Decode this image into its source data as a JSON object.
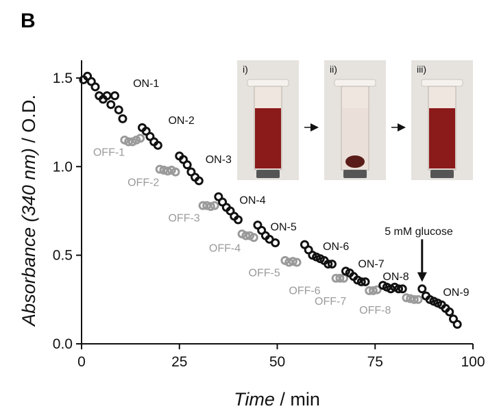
{
  "panel_label": "B",
  "colors": {
    "on": "#111111",
    "off": "#9a9a9a",
    "tube_liquid": "#8b1a1a",
    "photo_bg": "#e6e3df"
  },
  "chart_data": {
    "type": "scatter",
    "xlabel_italic": "Time",
    "xlabel_rest": " / min",
    "ylabel_italic": "Absorbance (340 nm)",
    "ylabel_rest": " / O.D.",
    "xlim": [
      0,
      100
    ],
    "ylim": [
      0,
      1.6
    ],
    "xticks": [
      0,
      25,
      50,
      75,
      100
    ],
    "ytick_values": [
      0.0,
      0.5,
      1.0,
      1.5
    ],
    "ytick_labels": [
      "0.0",
      "0.5",
      "1.0",
      "1.5"
    ],
    "grid": false,
    "segments": [
      {
        "name": "ON-1",
        "state": "on",
        "points": [
          [
            0.5,
            1.49
          ],
          [
            1.5,
            1.51
          ],
          [
            2.5,
            1.48
          ],
          [
            3.5,
            1.45
          ],
          [
            4.5,
            1.4
          ],
          [
            5.5,
            1.38
          ],
          [
            6.5,
            1.4
          ],
          [
            7.5,
            1.35
          ],
          [
            8.5,
            1.4
          ],
          [
            9.5,
            1.32
          ],
          [
            10.5,
            1.27
          ]
        ]
      },
      {
        "name": "OFF-1",
        "state": "off",
        "points": [
          [
            11.0,
            1.15
          ],
          [
            12.0,
            1.14
          ],
          [
            13.0,
            1.14
          ],
          [
            14.0,
            1.15
          ],
          [
            15.0,
            1.16
          ]
        ]
      },
      {
        "name": "ON-2",
        "state": "on",
        "points": [
          [
            15.5,
            1.22
          ],
          [
            16.5,
            1.2
          ],
          [
            17.5,
            1.17
          ],
          [
            18.5,
            1.14
          ],
          [
            19.5,
            1.12
          ]
        ]
      },
      {
        "name": "OFF-2",
        "state": "off",
        "points": [
          [
            20.0,
            0.985
          ],
          [
            21.0,
            0.98
          ],
          [
            22.0,
            0.975
          ],
          [
            23.0,
            0.98
          ],
          [
            24.0,
            0.97
          ]
        ]
      },
      {
        "name": "ON-3",
        "state": "on",
        "points": [
          [
            25.0,
            1.06
          ],
          [
            26.0,
            1.04
          ],
          [
            27.0,
            1.01
          ],
          [
            28.0,
            0.97
          ],
          [
            29.0,
            0.94
          ],
          [
            30.0,
            0.92
          ]
        ]
      },
      {
        "name": "OFF-3",
        "state": "off",
        "points": [
          [
            31.0,
            0.78
          ],
          [
            32.0,
            0.78
          ],
          [
            33.0,
            0.775
          ],
          [
            34.0,
            0.78
          ]
        ]
      },
      {
        "name": "ON-4",
        "state": "on",
        "points": [
          [
            35.0,
            0.83
          ],
          [
            36.0,
            0.8
          ],
          [
            37.0,
            0.77
          ],
          [
            38.0,
            0.75
          ],
          [
            39.0,
            0.72
          ],
          [
            40.0,
            0.7
          ]
        ]
      },
      {
        "name": "OFF-4",
        "state": "off",
        "points": [
          [
            41.0,
            0.62
          ],
          [
            42.0,
            0.61
          ],
          [
            43.0,
            0.61
          ],
          [
            44.0,
            0.6
          ]
        ]
      },
      {
        "name": "ON-5",
        "state": "on",
        "points": [
          [
            45.0,
            0.67
          ],
          [
            46.0,
            0.64
          ],
          [
            47.0,
            0.61
          ],
          [
            48.0,
            0.59
          ],
          [
            49.5,
            0.57
          ]
        ]
      },
      {
        "name": "OFF-5",
        "state": "off",
        "points": [
          [
            52.0,
            0.47
          ],
          [
            53.0,
            0.46
          ],
          [
            54.0,
            0.465
          ],
          [
            55.0,
            0.46
          ]
        ]
      },
      {
        "name": "ON-6",
        "state": "on",
        "points": [
          [
            57.0,
            0.56
          ],
          [
            58.0,
            0.53
          ],
          [
            59.0,
            0.5
          ],
          [
            60.0,
            0.49
          ],
          [
            61.0,
            0.48
          ],
          [
            62.0,
            0.47
          ],
          [
            63.0,
            0.45
          ],
          [
            64.0,
            0.45
          ]
        ]
      },
      {
        "name": "OFF-6",
        "state": "off",
        "points": [
          [
            65.0,
            0.37
          ],
          [
            66.0,
            0.37
          ],
          [
            67.0,
            0.37
          ]
        ]
      },
      {
        "name": "ON-7",
        "state": "on",
        "points": [
          [
            67.5,
            0.41
          ],
          [
            68.5,
            0.4
          ],
          [
            69.5,
            0.38
          ],
          [
            70.5,
            0.36
          ],
          [
            71.5,
            0.35
          ],
          [
            72.5,
            0.35
          ]
        ]
      },
      {
        "name": "OFF-7",
        "state": "off",
        "points": [
          [
            73.5,
            0.3
          ],
          [
            74.5,
            0.3
          ],
          [
            75.5,
            0.305
          ]
        ]
      },
      {
        "name": "ON-8",
        "state": "on",
        "points": [
          [
            77.0,
            0.33
          ],
          [
            78.0,
            0.32
          ],
          [
            79.0,
            0.31
          ],
          [
            80.0,
            0.32
          ],
          [
            81.0,
            0.31
          ],
          [
            82.0,
            0.31
          ]
        ]
      },
      {
        "name": "OFF-8",
        "state": "off",
        "points": [
          [
            83.0,
            0.26
          ],
          [
            84.0,
            0.255
          ],
          [
            85.0,
            0.25
          ],
          [
            86.0,
            0.25
          ]
        ]
      },
      {
        "name": "ON-9",
        "state": "on",
        "points": [
          [
            87.0,
            0.31
          ],
          [
            88.0,
            0.27
          ],
          [
            89.0,
            0.25
          ],
          [
            90.0,
            0.24
          ],
          [
            91.0,
            0.23
          ],
          [
            92.0,
            0.22
          ],
          [
            93.0,
            0.2
          ],
          [
            94.0,
            0.18
          ],
          [
            95.0,
            0.14
          ],
          [
            96.0,
            0.11
          ]
        ]
      }
    ],
    "segment_labels": [
      {
        "text": "ON-1",
        "state": "on",
        "x": 16.5,
        "y": 1.45
      },
      {
        "text": "OFF-1",
        "state": "off",
        "x": 7.0,
        "y": 1.06
      },
      {
        "text": "ON-2",
        "state": "on",
        "x": 25.5,
        "y": 1.24
      },
      {
        "text": "OFF-2",
        "state": "off",
        "x": 15.8,
        "y": 0.89
      },
      {
        "text": "ON-3",
        "state": "on",
        "x": 35.0,
        "y": 1.02
      },
      {
        "text": "OFF-3",
        "state": "off",
        "x": 26.2,
        "y": 0.69
      },
      {
        "text": "ON-4",
        "state": "on",
        "x": 43.7,
        "y": 0.79
      },
      {
        "text": "OFF-4",
        "state": "off",
        "x": 36.6,
        "y": 0.52
      },
      {
        "text": "ON-5",
        "state": "on",
        "x": 51.6,
        "y": 0.64
      },
      {
        "text": "OFF-5",
        "state": "off",
        "x": 46.7,
        "y": 0.38
      },
      {
        "text": "ON-6",
        "state": "on",
        "x": 65.0,
        "y": 0.53
      },
      {
        "text": "OFF-6",
        "state": "off",
        "x": 57.0,
        "y": 0.28
      },
      {
        "text": "ON-7",
        "state": "on",
        "x": 74.0,
        "y": 0.43
      },
      {
        "text": "OFF-7",
        "state": "off",
        "x": 63.6,
        "y": 0.22
      },
      {
        "text": "ON-8",
        "state": "on",
        "x": 80.3,
        "y": 0.36
      },
      {
        "text": "OFF-8",
        "state": "off",
        "x": 75.0,
        "y": 0.17
      },
      {
        "text": "ON-9",
        "state": "on",
        "x": 95.7,
        "y": 0.27
      }
    ],
    "annotation": {
      "text": "5 mM glucose",
      "arrow_x": 87.0,
      "arrow_from_y": 0.59,
      "arrow_to_y": 0.35
    },
    "inset_photos": [
      {
        "label": "i)",
        "state": "dispersed"
      },
      {
        "label": "ii)",
        "state": "sedimented"
      },
      {
        "label": "iii)",
        "state": "dispersed"
      }
    ]
  }
}
